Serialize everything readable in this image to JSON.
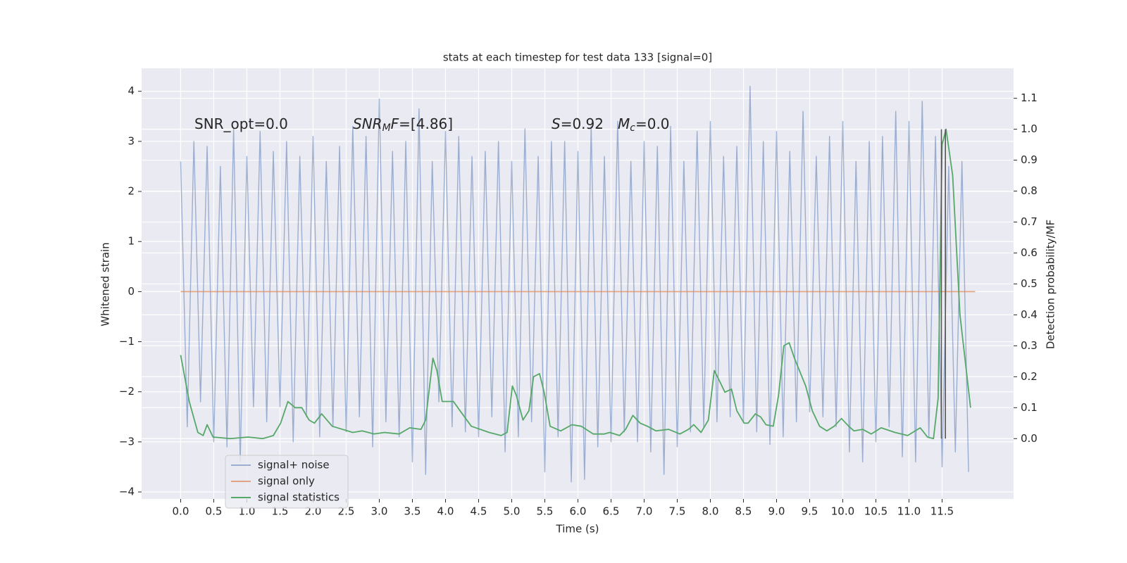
{
  "chart_data": {
    "type": "line",
    "title": "stats at each timestep for test data 133 [signal=0]",
    "xlabel": "Time (s)",
    "ylabel": "Whitened strain",
    "y2label": "Detection probability/MF",
    "xlim": [
      -0.59,
      12.58
    ],
    "ylim": [
      -4.14,
      4.46
    ],
    "y2lim": [
      -0.195,
      1.197
    ],
    "xticks": [
      {
        "value": 0,
        "label": "0.0"
      },
      0.5,
      {
        "value": 1,
        "label": "1.0"
      },
      1.5,
      {
        "value": 2,
        "label": "2.0"
      },
      2.5,
      {
        "value": 3,
        "label": "3.0"
      },
      3.5,
      {
        "value": 4,
        "label": "4.0"
      },
      4.5,
      {
        "value": 5,
        "label": "5.0"
      },
      5.5,
      {
        "value": 6,
        "label": "6.0"
      },
      6.5,
      {
        "value": 7,
        "label": "7.0"
      },
      7.5,
      {
        "value": 8,
        "label": "8.0"
      },
      8.5,
      {
        "value": 9,
        "label": "9.0"
      },
      9.5,
      {
        "value": 10,
        "label": "10.0"
      },
      10.5,
      {
        "value": 11,
        "label": "11.0"
      },
      11.5
    ],
    "yticks": [
      {
        "value": -4,
        "label": "−4"
      },
      {
        "value": -3,
        "label": "−3"
      },
      {
        "value": -2,
        "label": "−2"
      },
      {
        "value": -1,
        "label": "−1"
      },
      0,
      1,
      2,
      3,
      4
    ],
    "y2ticks": [
      {
        "value": 0,
        "label": "0.0"
      },
      0.1,
      0.2,
      0.3,
      0.4,
      0.5,
      0.6,
      0.7,
      0.8,
      0.9,
      {
        "value": 1,
        "label": "1.0"
      },
      1.1
    ],
    "grid": true,
    "background": "#eaeaf2",
    "series": [
      {
        "name": "signal+ noise",
        "color": "#4c72b0",
        "alpha": 0.5,
        "x": [
          0.0,
          0.1,
          0.2,
          0.3,
          0.4,
          0.5,
          0.6,
          0.7,
          0.8,
          0.9,
          1.0,
          1.1,
          1.2,
          1.3,
          1.4,
          1.5,
          1.6,
          1.7,
          1.8,
          1.9,
          2.0,
          2.1,
          2.2,
          2.3,
          2.4,
          2.5,
          2.6,
          2.7,
          2.8,
          2.9,
          3.0,
          3.1,
          3.2,
          3.3,
          3.4,
          3.5,
          3.6,
          3.7,
          3.8,
          3.9,
          4.0,
          4.1,
          4.2,
          4.3,
          4.4,
          4.5,
          4.6,
          4.7,
          4.8,
          4.9,
          5.0,
          5.1,
          5.2,
          5.3,
          5.4,
          5.5,
          5.6,
          5.7,
          5.8,
          5.9,
          6.0,
          6.1,
          6.2,
          6.3,
          6.4,
          6.5,
          6.6,
          6.7,
          6.8,
          6.9,
          7.0,
          7.1,
          7.2,
          7.3,
          7.4,
          7.5,
          7.6,
          7.7,
          7.8,
          7.9,
          8.0,
          8.1,
          8.2,
          8.3,
          8.4,
          8.5,
          8.6,
          8.7,
          8.8,
          8.9,
          9.0,
          9.1,
          9.2,
          9.3,
          9.4,
          9.5,
          9.6,
          9.7,
          9.8,
          9.9,
          10.0,
          10.1,
          10.2,
          10.3,
          10.4,
          10.5,
          10.6,
          10.7,
          10.8,
          10.9,
          11.0,
          11.1,
          11.2,
          11.3,
          11.4,
          11.5,
          11.6,
          11.7,
          11.8,
          11.9
        ],
        "values": [
          2.6,
          -2.7,
          3.0,
          -2.2,
          2.9,
          -3.0,
          2.5,
          -3.1,
          3.25,
          -3.4,
          2.7,
          -2.3,
          3.2,
          -2.6,
          2.8,
          -2.3,
          3.0,
          -3.0,
          2.7,
          -2.5,
          3.1,
          -2.9,
          2.6,
          -2.7,
          2.9,
          -2.8,
          3.3,
          -2.5,
          3.1,
          -3.1,
          3.85,
          -2.6,
          2.8,
          -2.9,
          3.0,
          -3.4,
          3.65,
          -3.65,
          2.6,
          -2.2,
          3.2,
          -2.7,
          3.1,
          -2.8,
          2.7,
          -2.9,
          2.8,
          -2.5,
          3.0,
          -3.2,
          2.6,
          -2.9,
          3.25,
          -2.6,
          2.7,
          -3.6,
          3.0,
          -2.9,
          3.0,
          -3.8,
          2.8,
          -3.75,
          3.3,
          -3.1,
          2.7,
          -3.0,
          3.4,
          -2.8,
          2.6,
          -3.0,
          3.0,
          -3.2,
          2.9,
          -3.65,
          3.3,
          -3.1,
          2.6,
          -2.8,
          3.2,
          -2.7,
          3.4,
          -2.6,
          2.7,
          -2.5,
          2.9,
          -2.6,
          4.1,
          -2.8,
          3.0,
          -3.05,
          3.2,
          -2.9,
          2.8,
          -2.6,
          3.6,
          -2.4,
          2.7,
          -2.5,
          3.1,
          -2.7,
          3.4,
          -3.2,
          2.6,
          -3.4,
          3.0,
          -3.0,
          3.1,
          -2.7,
          3.6,
          -3.3,
          3.4,
          -3.4,
          3.8,
          -2.9,
          3.1,
          -3.5,
          2.5,
          -3.2,
          2.6,
          -3.6
        ]
      },
      {
        "name": "signal only",
        "color": "#dd8452",
        "alpha": 0.7,
        "x": [
          0.0,
          12.0
        ],
        "values": [
          0,
          0
        ]
      },
      {
        "name": "signal statistics",
        "color": "#55a868",
        "alpha": 1,
        "axis": "y2",
        "x": [
          0.0,
          0.13,
          0.26,
          0.34,
          0.4,
          0.49,
          0.75,
          1.02,
          1.24,
          1.4,
          1.51,
          1.62,
          1.73,
          1.83,
          1.94,
          2.02,
          2.13,
          2.29,
          2.6,
          2.74,
          2.92,
          3.08,
          3.3,
          3.46,
          3.63,
          3.7,
          3.81,
          3.87,
          3.95,
          4.12,
          4.22,
          4.39,
          4.66,
          4.84,
          4.93,
          5.01,
          5.07,
          5.17,
          5.26,
          5.33,
          5.42,
          5.49,
          5.58,
          5.74,
          5.91,
          6.05,
          6.23,
          6.4,
          6.48,
          6.63,
          6.72,
          6.83,
          6.94,
          7.05,
          7.18,
          7.37,
          7.54,
          7.67,
          7.75,
          7.86,
          7.97,
          8.06,
          8.13,
          8.22,
          8.32,
          8.4,
          8.51,
          8.57,
          8.68,
          8.76,
          8.84,
          8.95,
          9.03,
          9.11,
          9.19,
          9.27,
          9.44,
          9.54,
          9.65,
          9.76,
          9.87,
          9.98,
          10.09,
          10.17,
          10.3,
          10.43,
          10.58,
          10.79,
          10.98,
          11.17,
          11.28,
          11.37,
          11.44,
          11.5,
          11.56,
          11.66,
          11.77,
          11.93
        ],
        "values": [
          0.27,
          0.12,
          0.02,
          0.01,
          0.045,
          0.005,
          0.0,
          0.005,
          0.0,
          0.01,
          0.05,
          0.12,
          0.1,
          0.1,
          0.06,
          0.05,
          0.08,
          0.04,
          0.02,
          0.025,
          0.015,
          0.02,
          0.015,
          0.035,
          0.03,
          0.06,
          0.26,
          0.22,
          0.12,
          0.12,
          0.09,
          0.04,
          0.02,
          0.01,
          0.02,
          0.17,
          0.14,
          0.06,
          0.09,
          0.2,
          0.21,
          0.15,
          0.04,
          0.025,
          0.045,
          0.04,
          0.015,
          0.015,
          0.02,
          0.01,
          0.03,
          0.075,
          0.05,
          0.04,
          0.025,
          0.03,
          0.015,
          0.03,
          0.045,
          0.02,
          0.06,
          0.22,
          0.19,
          0.15,
          0.16,
          0.09,
          0.05,
          0.05,
          0.08,
          0.07,
          0.045,
          0.04,
          0.14,
          0.3,
          0.31,
          0.26,
          0.17,
          0.09,
          0.04,
          0.025,
          0.04,
          0.065,
          0.04,
          0.025,
          0.03,
          0.015,
          0.035,
          0.02,
          0.01,
          0.035,
          0.005,
          0.0,
          0.13,
          0.95,
          1.0,
          0.85,
          0.4,
          0.1
        ]
      }
    ],
    "vlines": {
      "x": [
        11.49,
        11.55
      ],
      "y2range": [
        0,
        1
      ],
      "color": "#555555"
    },
    "annotations": [
      [
        {
          "text": "SNR_opt=0.0"
        }
      ],
      [
        {
          "text": "SNR",
          "italic": true
        },
        {
          "text": "M",
          "italic": true,
          "sub": true
        },
        {
          "text": "F",
          "italic": true
        },
        {
          "text": "=[4.86]"
        }
      ],
      [
        {
          "text": "S",
          "italic": true
        },
        {
          "text": "=0.92"
        }
      ],
      [
        {
          "text": "M",
          "italic": true
        },
        {
          "text": "c",
          "italic": true,
          "sub": true
        },
        {
          "text": "=0.0"
        }
      ]
    ],
    "legend": "lower left"
  }
}
